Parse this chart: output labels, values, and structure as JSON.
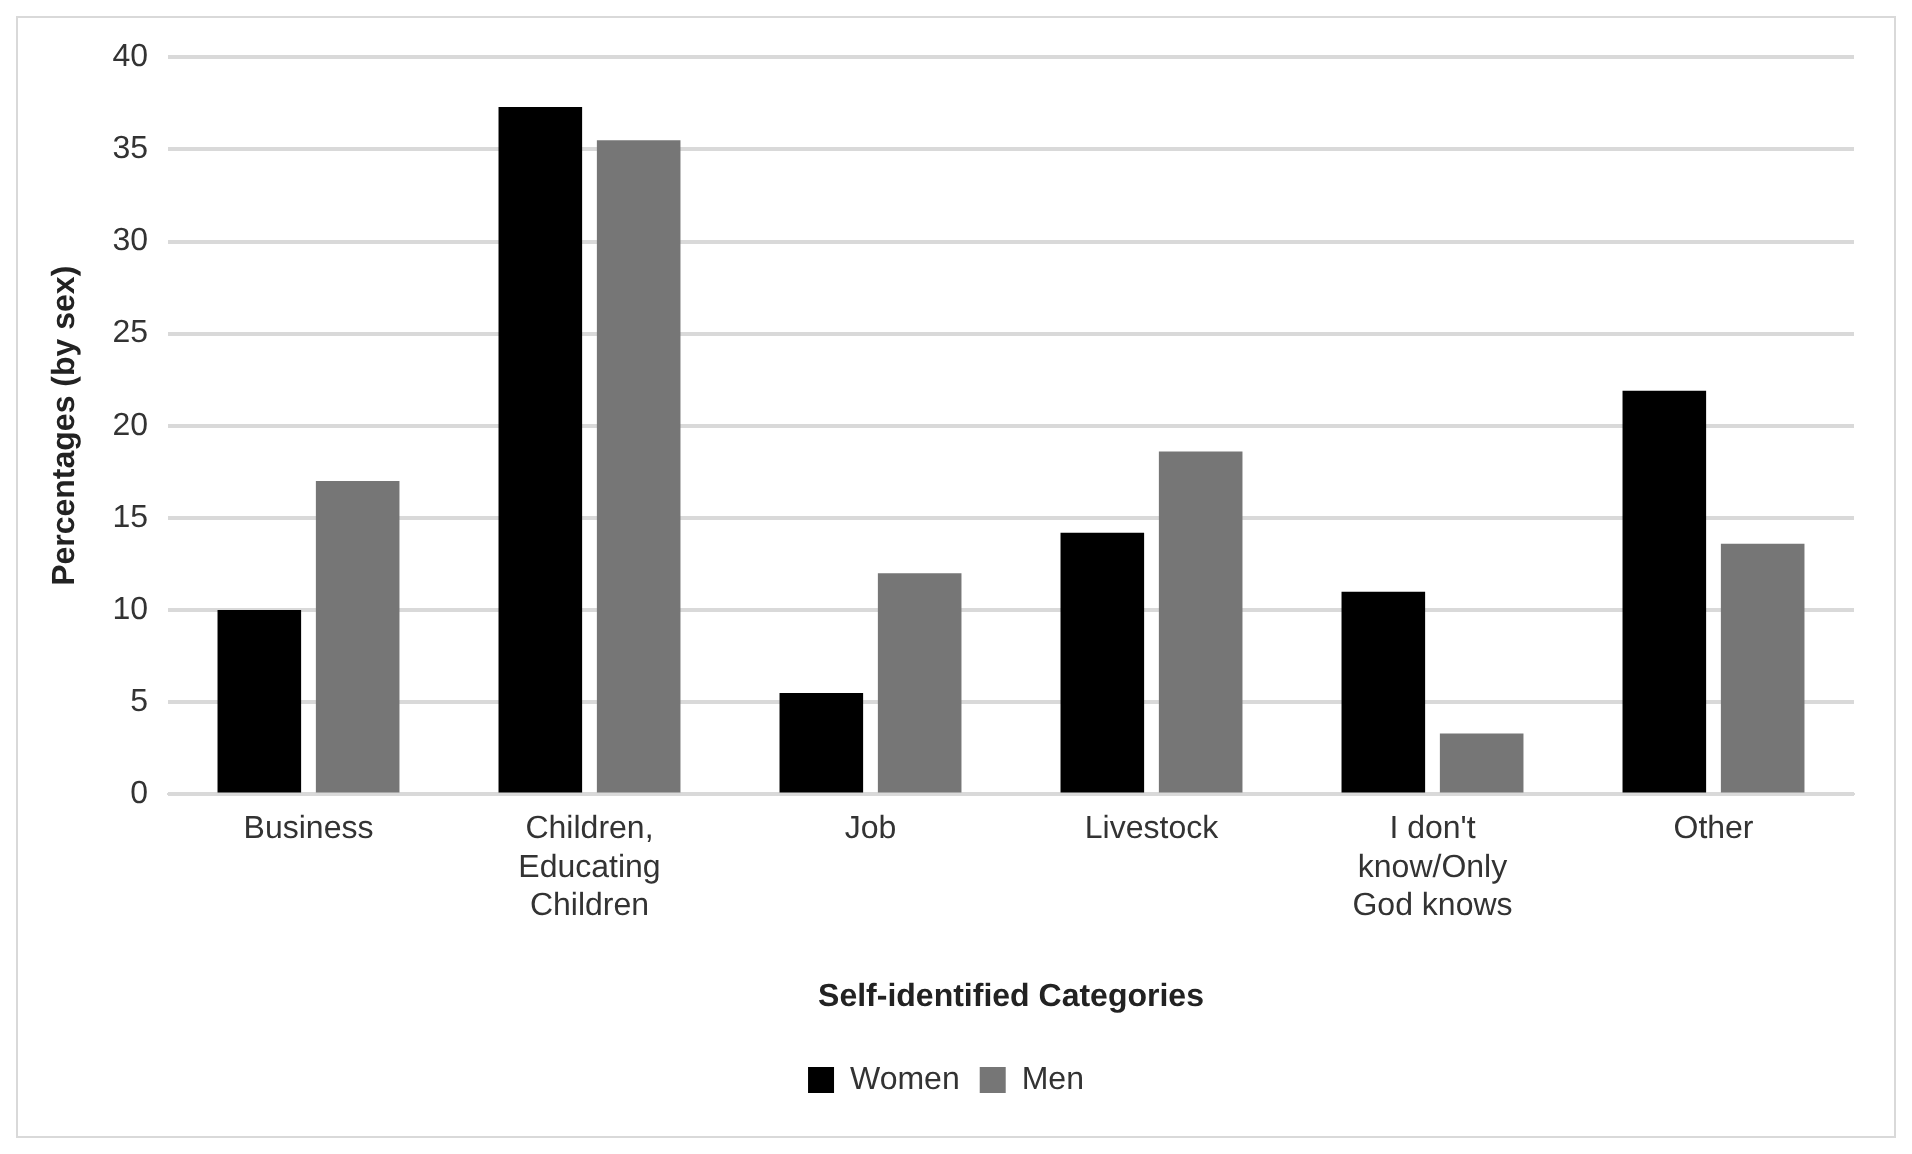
{
  "chart_data": {
    "type": "bar",
    "xlabel": "Self-identified Categories",
    "ylabel": "Percentages (by sex)",
    "categories": [
      "Business",
      "Children, Educating Children",
      "Job",
      "Livestock",
      "I don't know/Only God knows",
      "Other"
    ],
    "series": [
      {
        "name": "Women",
        "color": "#000000",
        "values": [
          10,
          37.3,
          5.5,
          14.2,
          11.0,
          21.9
        ]
      },
      {
        "name": "Men",
        "color": "#767676",
        "values": [
          17,
          35.5,
          12,
          18.6,
          3.3,
          13.6
        ]
      }
    ],
    "ylim": [
      0,
      40
    ],
    "yticks": [
      0,
      5,
      10,
      15,
      20,
      25,
      30,
      35,
      40
    ],
    "grid": "y",
    "legend": "bottom"
  }
}
